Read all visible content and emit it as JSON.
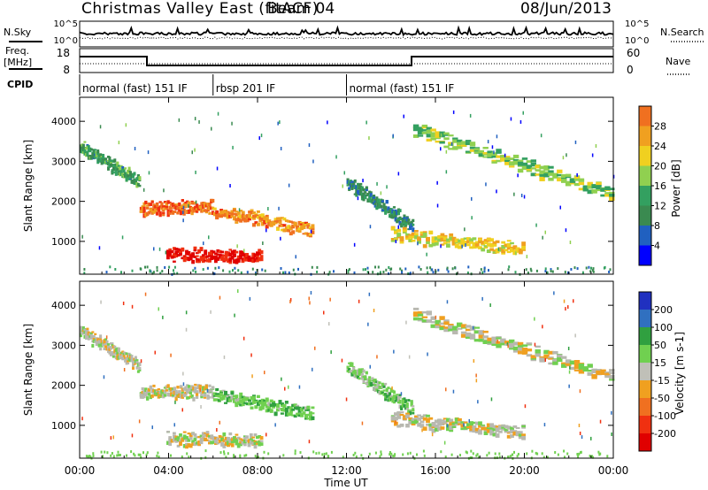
{
  "header": {
    "station": "Christmas Valley East (fitACF)",
    "beam": "Beam 04",
    "date": "08/Jun/2013"
  },
  "top_panels": {
    "nsky_label": "N.Sky",
    "nsearch_label": "N.Search",
    "noise_ticks": [
      "10^5",
      "10^0"
    ],
    "freq_label": "Freq.",
    "freq_unit": "[MHz]",
    "freq_ticks": [
      "18",
      "8"
    ],
    "nave_label": "Nave",
    "nave_ticks": [
      "60",
      "0"
    ],
    "cpid_label": "CPID",
    "cpid_segments": [
      {
        "label": "normal (fast) 151 IF",
        "start_hour": 0,
        "end_hour": 6
      },
      {
        "label": "rbsp 201 IF",
        "start_hour": 6,
        "end_hour": 12
      },
      {
        "label": "normal (fast) 151 IF",
        "start_hour": 12,
        "end_hour": 24
      }
    ]
  },
  "colors": {
    "power_scale": [
      "#0000ff",
      "#2060c0",
      "#3a8a50",
      "#33a060",
      "#90d050",
      "#f0d020",
      "#f0a020",
      "#f07020",
      "#f03010",
      "#e00000"
    ],
    "velocity_scale": [
      "#2030c0",
      "#3070c0",
      "#30a040",
      "#70d050",
      "#c0c0b8",
      "#f0a020",
      "#f07020",
      "#f03010",
      "#e00000"
    ],
    "ground_scatter": "#b8b8b0"
  },
  "chart_data": [
    {
      "type": "heatmap",
      "title": "",
      "xlabel": "",
      "ylabel": "Slant Range [km]",
      "xlim": [
        0,
        24
      ],
      "ylim": [
        180,
        4600
      ],
      "y_ticks": [
        "1000",
        "2000",
        "3000",
        "4000"
      ],
      "colorbar": {
        "label": "Power [dB]",
        "range": [
          0,
          32
        ],
        "ticks": [
          "4",
          "8",
          "12",
          "16",
          "20",
          "24",
          "28"
        ]
      },
      "features": [
        {
          "t_start": 0.0,
          "t_end": 2.7,
          "range_start": 3400,
          "range_end": 2500,
          "value_db": 10
        },
        {
          "t_start": 2.7,
          "t_end": 6.0,
          "range_start": 1850,
          "range_end": 1900,
          "value_db": 24
        },
        {
          "t_start": 6.0,
          "t_end": 10.5,
          "range_start": 1800,
          "range_end": 1300,
          "value_db": 22
        },
        {
          "t_start": 3.9,
          "t_end": 8.2,
          "range_start": 700,
          "range_end": 650,
          "value_db": 30
        },
        {
          "t_start": 12.0,
          "t_end": 15.0,
          "range_start": 2500,
          "range_end": 1400,
          "value_db": 8
        },
        {
          "t_start": 15.0,
          "t_end": 24.0,
          "range_start": 3800,
          "range_end": 2200,
          "value_db": 14
        },
        {
          "t_start": 14.0,
          "t_end": 20.0,
          "range_start": 1200,
          "range_end": 850,
          "value_db": 18
        }
      ]
    },
    {
      "type": "heatmap",
      "title": "",
      "xlabel": "Time UT",
      "ylabel": "Slant Range [km]",
      "xlim": [
        0,
        24
      ],
      "ylim": [
        180,
        4600
      ],
      "x_ticks": [
        "00:00",
        "04:00",
        "08:00",
        "12:00",
        "16:00",
        "20:00",
        "00:00"
      ],
      "y_ticks": [
        "1000",
        "2000",
        "3000",
        "4000"
      ],
      "colorbar": {
        "label": "Velocity [m s-1]",
        "range": [
          -250,
          250
        ],
        "ticks": [
          "200",
          "100",
          "50",
          "15",
          "-15",
          "-50",
          "-100",
          "-200"
        ]
      },
      "features": [
        {
          "t_start": 0.0,
          "t_end": 2.7,
          "range_start": 3400,
          "range_end": 2500,
          "value_ms": 0
        },
        {
          "t_start": 2.7,
          "t_end": 6.0,
          "range_start": 1850,
          "range_end": 1900,
          "value_ms": 0
        },
        {
          "t_start": 6.0,
          "t_end": 10.5,
          "range_start": 1800,
          "range_end": 1300,
          "value_ms": 40
        },
        {
          "t_start": 3.9,
          "t_end": 8.2,
          "range_start": 700,
          "range_end": 650,
          "value_ms": 0
        },
        {
          "t_start": 12.0,
          "t_end": 15.0,
          "range_start": 2500,
          "range_end": 1400,
          "value_ms": 30
        },
        {
          "t_start": 15.0,
          "t_end": 24.0,
          "range_start": 3800,
          "range_end": 2200,
          "value_ms": 0
        },
        {
          "t_start": 14.0,
          "t_end": 20.0,
          "range_start": 1200,
          "range_end": 850,
          "value_ms": 0
        }
      ]
    }
  ]
}
